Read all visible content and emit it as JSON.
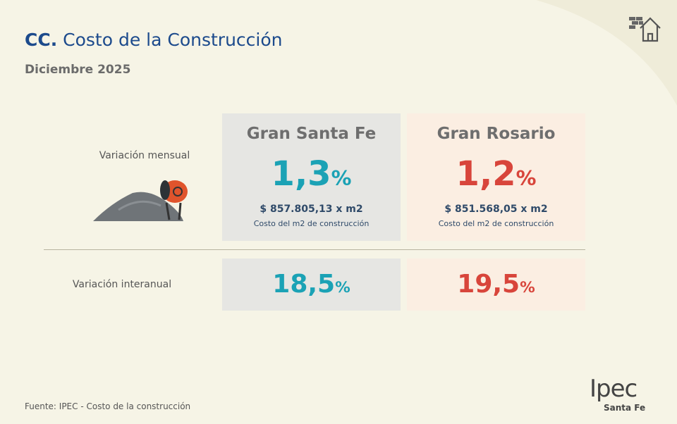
{
  "header": {
    "code": "CC.",
    "title": "Costo de la Construcción",
    "period": "Diciembre 2025"
  },
  "rows": [
    {
      "label": "Variación mensual"
    },
    {
      "label": "Variación interanual"
    }
  ],
  "regions": [
    {
      "name": "Gran Santa Fe",
      "monthly": {
        "value": "1,3",
        "unit": "%"
      },
      "price": "$ 857.805,13 x m2",
      "price_note": "Costo del m2 de construcción",
      "annual": {
        "value": "18,5",
        "unit": "%"
      }
    },
    {
      "name": "Gran Rosario",
      "monthly": {
        "value": "1,2",
        "unit": "%"
      },
      "price": "$ 851.568,05 x m2",
      "price_note": "Costo del m2 de construcción",
      "annual": {
        "value": "19,5",
        "unit": "%"
      }
    }
  ],
  "footer": {
    "source": "Fuente: IPEC - Costo de la construcción",
    "logo": "Ipec",
    "logo_sub": "Santa Fe"
  }
}
